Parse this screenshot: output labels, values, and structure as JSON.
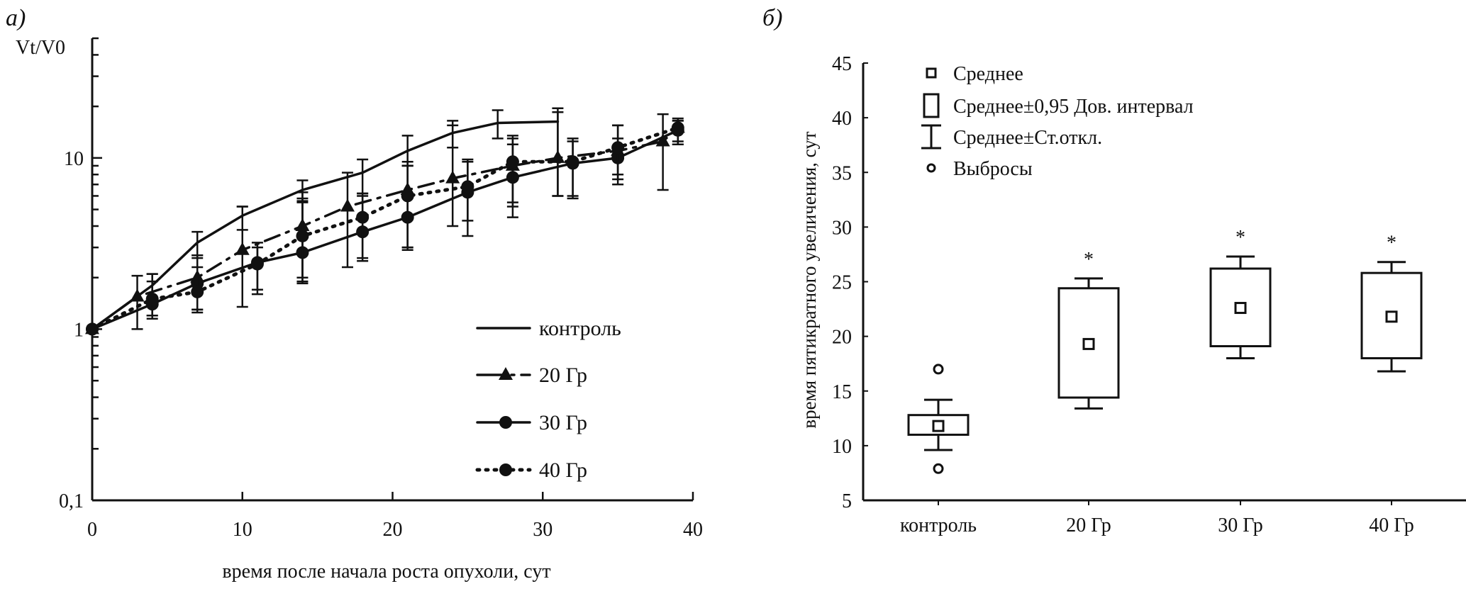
{
  "chart_data": [
    {
      "panel_label": "а)",
      "type": "line",
      "xlabel": "время  после начала роста опухоли, сут",
      "ylabel": "Vt/V0",
      "xlim": [
        0,
        40
      ],
      "ylim": [
        0.1,
        50
      ],
      "yscale": "log",
      "xticks": [
        "0",
        "10",
        "20",
        "30",
        "40"
      ],
      "yticks": [
        {
          "v": 0.1,
          "label": "0,1"
        },
        {
          "v": 1,
          "label": "1"
        },
        {
          "v": 10,
          "label": "10"
        }
      ],
      "grid": false,
      "legend_position": "bottom-right",
      "series": [
        {
          "name": "контроль",
          "marker": "none",
          "dash": "solid",
          "x": [
            0,
            4,
            7,
            10,
            14,
            18,
            21,
            24,
            27,
            31
          ],
          "y": [
            1,
            1.8,
            3.2,
            4.6,
            6.5,
            8.2,
            11,
            14,
            16,
            16.3
          ],
          "err": [
            [
              1,
              1
            ],
            [
              1.2,
              2.1
            ],
            [
              2.6,
              3.7
            ],
            [
              3.8,
              5.2
            ],
            [
              5.6,
              7.4
            ],
            [
              6.2,
              9.8
            ],
            [
              9,
              13.5
            ],
            [
              11.5,
              16.5
            ],
            [
              13,
              19
            ],
            [
              6,
              19.5
            ]
          ]
        },
        {
          "name": "20 Гр",
          "marker": "triangle",
          "dash": "dashdot",
          "x": [
            0,
            3,
            7,
            10,
            14,
            17,
            21,
            24,
            28,
            31,
            35,
            38,
            39
          ],
          "y": [
            1,
            1.55,
            2.0,
            2.9,
            4.0,
            5.2,
            6.5,
            7.6,
            9.0,
            10,
            11,
            12.5,
            15
          ],
          "err": [
            [
              1,
              1
            ],
            [
              1.0,
              2.05
            ],
            [
              1.3,
              2.7
            ],
            [
              1.35,
              5.2
            ],
            [
              1.9,
              6.3
            ],
            [
              2.3,
              8.2
            ],
            [
              3.0,
              9.5
            ],
            [
              4.0,
              15.5
            ],
            [
              5.5,
              13.5
            ],
            [
              6.0,
              18.5
            ],
            [
              7.5,
              15.5
            ],
            [
              6.5,
              18
            ],
            [
              12.5,
              17
            ]
          ]
        },
        {
          "name": "30 Гр",
          "marker": "circle",
          "dash": "solid",
          "x": [
            0,
            4,
            7,
            11,
            14,
            18,
            21,
            25,
            28,
            32,
            35,
            39
          ],
          "y": [
            1,
            1.4,
            1.85,
            2.45,
            2.8,
            3.7,
            4.5,
            6.3,
            7.7,
            9.3,
            10,
            14.5
          ],
          "err": [
            [
              1,
              1
            ],
            [
              1.15,
              1.9
            ],
            [
              1.3,
              2.7
            ],
            [
              1.6,
              3.2
            ],
            [
              1.85,
              5.8
            ],
            [
              2.6,
              6.2
            ],
            [
              2.9,
              9.0
            ],
            [
              3.5,
              9.5
            ],
            [
              4.5,
              13
            ],
            [
              6,
              13
            ],
            [
              7,
              13
            ],
            [
              12,
              16.5
            ]
          ]
        },
        {
          "name": "40 Гр",
          "marker": "circle",
          "dash": "dotted",
          "x": [
            0,
            4,
            7,
            11,
            14,
            18,
            21,
            25,
            28,
            32,
            35,
            39
          ],
          "y": [
            1,
            1.5,
            1.65,
            2.4,
            3.5,
            4.5,
            6.0,
            6.8,
            9.5,
            9.5,
            11.5,
            15
          ],
          "err": [
            [
              1,
              1
            ],
            [
              1.2,
              2.1
            ],
            [
              1.25,
              2.3
            ],
            [
              1.7,
              3.0
            ],
            [
              2.0,
              5.5
            ],
            [
              2.5,
              6.0
            ],
            [
              3.0,
              9.0
            ],
            [
              4.3,
              9.8
            ],
            [
              5.2,
              12
            ],
            [
              5.8,
              12.5
            ],
            [
              8,
              15.5
            ],
            [
              12,
              16.5
            ]
          ]
        }
      ]
    },
    {
      "panel_label": "б)",
      "type": "box",
      "ylabel": "время пятикратного увеличения, сут",
      "ylim": [
        5,
        45
      ],
      "yticks": [
        "5",
        "10",
        "15",
        "20",
        "25",
        "30",
        "35",
        "40",
        "45"
      ],
      "categories": [
        "контроль",
        "20 Гр",
        "30 Гр",
        "40 Гр"
      ],
      "grid": false,
      "legend_position": "top-left",
      "legend": [
        "Среднее",
        "Среднее±0,95 Дов. интервал",
        "Среднее±Ст.откл.",
        "Выбросы"
      ],
      "boxes": [
        {
          "mean": 11.8,
          "ci": [
            11.0,
            12.8
          ],
          "sd": [
            9.6,
            14.2
          ],
          "outliers": [
            17.0,
            7.9
          ],
          "annotation": ""
        },
        {
          "mean": 19.3,
          "ci": [
            14.4,
            24.4
          ],
          "sd": [
            13.4,
            25.3
          ],
          "outliers": [],
          "annotation": "*"
        },
        {
          "mean": 22.6,
          "ci": [
            19.1,
            26.2
          ],
          "sd": [
            18.0,
            27.3
          ],
          "outliers": [],
          "annotation": "*"
        },
        {
          "mean": 21.8,
          "ci": [
            18.0,
            25.8
          ],
          "sd": [
            16.8,
            26.8
          ],
          "outliers": [],
          "annotation": "*"
        }
      ]
    }
  ]
}
